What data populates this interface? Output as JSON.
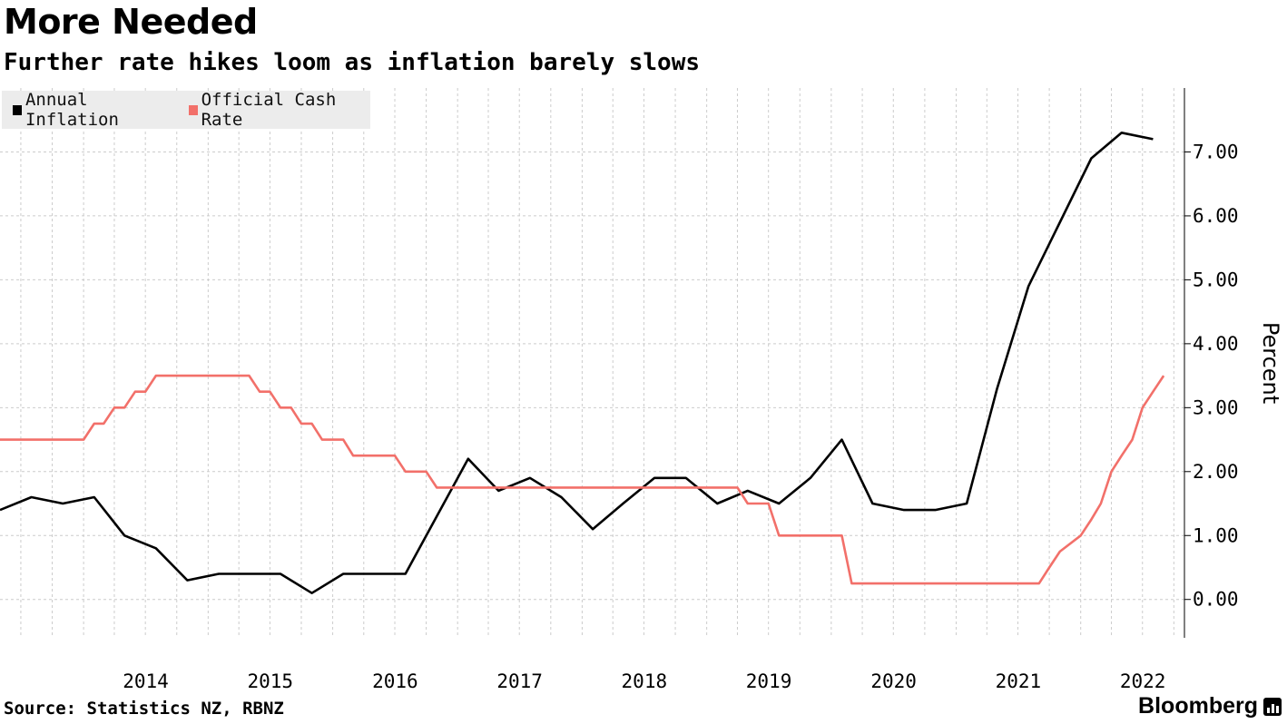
{
  "header": {
    "title": "More Needed",
    "subtitle": "Further rate hikes loom as inflation barely slows"
  },
  "footer": {
    "source": "Source: Statistics NZ, RBNZ",
    "brand": "Bloomberg"
  },
  "colors": {
    "inflation": "#000000",
    "cash_rate": "#f2706a",
    "grid": "#cccccc",
    "legend_bg": "#ececec"
  },
  "chart_data": {
    "type": "line",
    "title": "More Needed",
    "subtitle": "Further rate hikes loom as inflation barely slows",
    "ylabel": "Percent",
    "ylim": [
      -0.6,
      8.0
    ],
    "y_ticks": [
      "0.00",
      "1.00",
      "2.00",
      "3.00",
      "4.00",
      "5.00",
      "6.00",
      "7.00"
    ],
    "xlim": [
      "2013-05-01",
      "2022-11-01"
    ],
    "x_ticks": [
      "2014",
      "2015",
      "2016",
      "2017",
      "2018",
      "2019",
      "2020",
      "2021",
      "2022"
    ],
    "legend": "top-left",
    "grid": true,
    "series": [
      {
        "name": "Annual Inflation",
        "color": "#000000",
        "points": [
          [
            "2013-05-01",
            1.4
          ],
          [
            "2013-08-01",
            1.6
          ],
          [
            "2013-11-01",
            1.5
          ],
          [
            "2014-02-01",
            1.6
          ],
          [
            "2014-05-01",
            1.0
          ],
          [
            "2014-08-01",
            0.8
          ],
          [
            "2014-11-01",
            0.3
          ],
          [
            "2015-02-01",
            0.4
          ],
          [
            "2015-05-01",
            0.4
          ],
          [
            "2015-08-01",
            0.4
          ],
          [
            "2015-11-01",
            0.1
          ],
          [
            "2016-02-01",
            0.4
          ],
          [
            "2016-05-01",
            0.4
          ],
          [
            "2016-08-01",
            0.4
          ],
          [
            "2016-11-01",
            1.3
          ],
          [
            "2017-02-01",
            2.2
          ],
          [
            "2017-05-01",
            1.7
          ],
          [
            "2017-08-01",
            1.9
          ],
          [
            "2017-11-01",
            1.6
          ],
          [
            "2018-02-01",
            1.1
          ],
          [
            "2018-05-01",
            1.5
          ],
          [
            "2018-08-01",
            1.9
          ],
          [
            "2018-11-01",
            1.9
          ],
          [
            "2019-02-01",
            1.5
          ],
          [
            "2019-05-01",
            1.7
          ],
          [
            "2019-08-01",
            1.5
          ],
          [
            "2019-11-01",
            1.9
          ],
          [
            "2020-02-01",
            2.5
          ],
          [
            "2020-05-01",
            1.5
          ],
          [
            "2020-08-01",
            1.4
          ],
          [
            "2020-11-01",
            1.4
          ],
          [
            "2021-02-01",
            1.5
          ],
          [
            "2021-05-01",
            3.3
          ],
          [
            "2021-08-01",
            4.9
          ],
          [
            "2021-11-01",
            5.9
          ],
          [
            "2022-02-01",
            6.9
          ],
          [
            "2022-05-01",
            7.3
          ],
          [
            "2022-08-01",
            7.2
          ]
        ]
      },
      {
        "name": "Official Cash Rate",
        "color": "#f2706a",
        "points": [
          [
            "2013-05-01",
            2.5
          ],
          [
            "2014-01-01",
            2.5
          ],
          [
            "2014-02-01",
            2.75
          ],
          [
            "2014-03-01",
            2.75
          ],
          [
            "2014-04-01",
            3.0
          ],
          [
            "2014-05-01",
            3.0
          ],
          [
            "2014-06-01",
            3.25
          ],
          [
            "2014-07-01",
            3.25
          ],
          [
            "2014-08-01",
            3.5
          ],
          [
            "2015-05-01",
            3.5
          ],
          [
            "2015-06-01",
            3.25
          ],
          [
            "2015-07-01",
            3.25
          ],
          [
            "2015-08-01",
            3.0
          ],
          [
            "2015-09-01",
            3.0
          ],
          [
            "2015-10-01",
            2.75
          ],
          [
            "2015-11-01",
            2.75
          ],
          [
            "2015-12-01",
            2.5
          ],
          [
            "2016-02-01",
            2.5
          ],
          [
            "2016-03-01",
            2.25
          ],
          [
            "2016-07-01",
            2.25
          ],
          [
            "2016-08-01",
            2.0
          ],
          [
            "2016-10-01",
            2.0
          ],
          [
            "2016-11-01",
            1.75
          ],
          [
            "2019-04-01",
            1.75
          ],
          [
            "2019-05-01",
            1.5
          ],
          [
            "2019-07-01",
            1.5
          ],
          [
            "2019-08-01",
            1.0
          ],
          [
            "2020-02-01",
            1.0
          ],
          [
            "2020-03-01",
            0.25
          ],
          [
            "2021-09-01",
            0.25
          ],
          [
            "2021-10-01",
            0.5
          ],
          [
            "2021-11-01",
            0.75
          ],
          [
            "2022-01-01",
            1.0
          ],
          [
            "2022-02-01",
            1.25
          ],
          [
            "2022-03-01",
            1.5
          ],
          [
            "2022-04-01",
            2.0
          ],
          [
            "2022-05-01",
            2.25
          ],
          [
            "2022-06-01",
            2.5
          ],
          [
            "2022-07-01",
            3.0
          ],
          [
            "2022-08-01",
            3.25
          ],
          [
            "2022-09-01",
            3.5
          ]
        ]
      }
    ]
  }
}
